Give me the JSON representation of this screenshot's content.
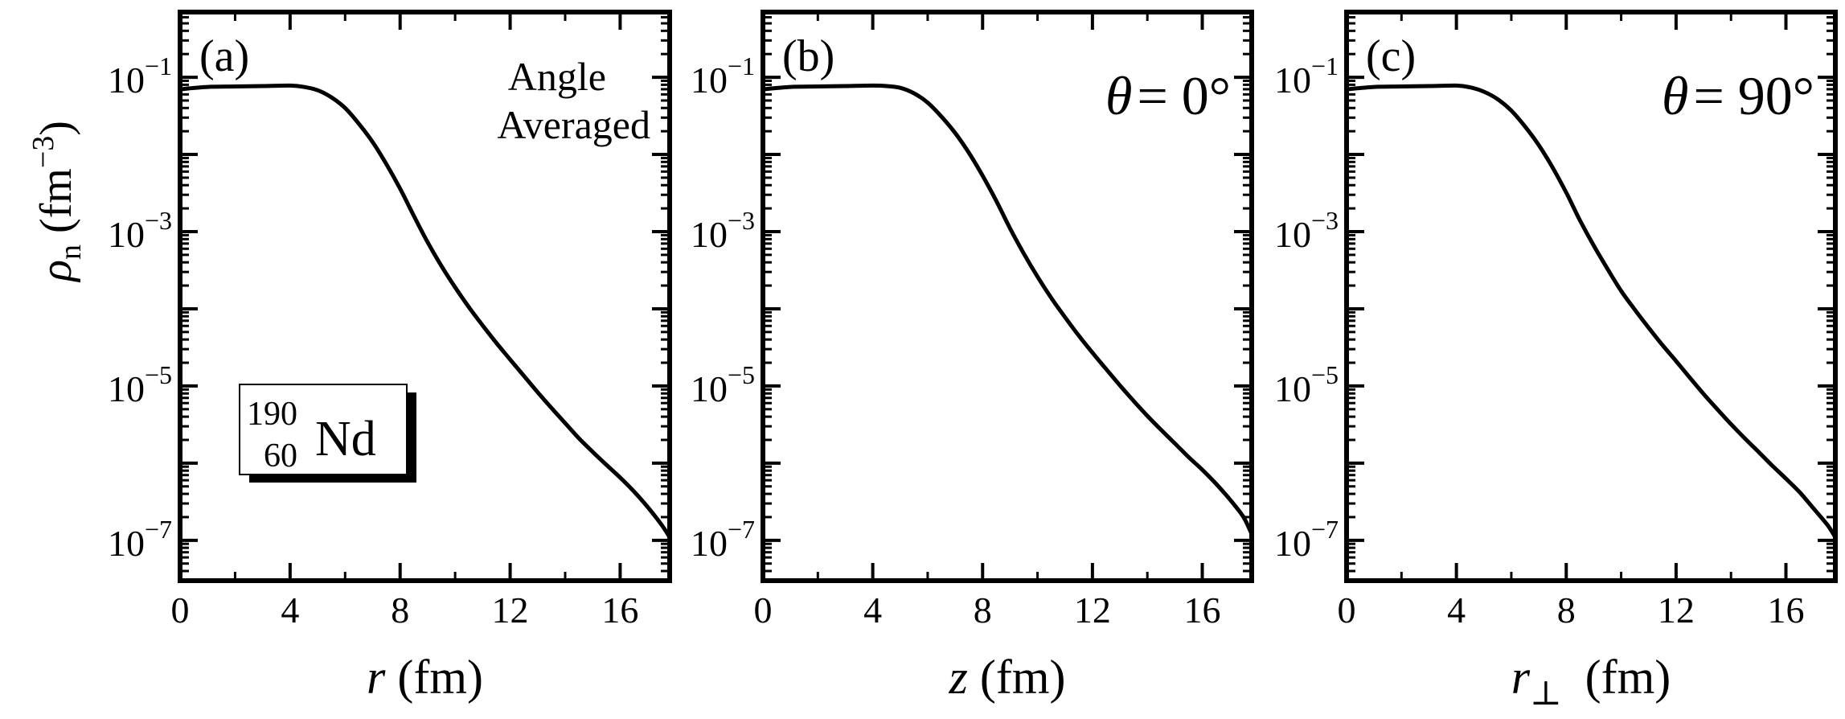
{
  "figure": {
    "ylabel_symbol": "ρ",
    "ylabel_sub": "n",
    "ylabel_unit_open": "(fm",
    "ylabel_unit_sup": "−3",
    "ylabel_unit_close": ")",
    "nucleus": {
      "mass_number": "190",
      "atomic_number": "60",
      "symbol": "Nd"
    }
  },
  "chart_data": [
    {
      "type": "line",
      "panel_label": "(a)",
      "annotation_lines": [
        "Angle",
        "Averaged"
      ],
      "xlabel_var": "r",
      "xlabel_sub": "",
      "xlabel_unit": " (fm)",
      "xlim": [
        0,
        17.8
      ],
      "ylim": [
        3e-08,
        0.7
      ],
      "yscale": "log",
      "xticks": [
        "0",
        "4",
        "8",
        "12",
        "16"
      ],
      "yticks": [
        {
          "base": "10",
          "exp": "−1",
          "value": 0.1
        },
        {
          "base": "10",
          "exp": "−3",
          "value": 0.001
        },
        {
          "base": "10",
          "exp": "−5",
          "value": 1e-05
        },
        {
          "base": "10",
          "exp": "−7",
          "value": 1e-07
        }
      ],
      "series": [
        {
          "x": [
            0,
            1,
            2,
            3,
            4,
            4.5,
            5,
            5.5,
            6,
            6.5,
            7,
            7.5,
            8,
            8.5,
            9,
            9.5,
            10,
            10.5,
            11,
            11.5,
            12,
            12.5,
            13,
            13.5,
            14,
            14.5,
            15,
            15.5,
            16,
            16.5,
            17,
            17.5,
            17.8
          ],
          "y": [
            0.07,
            0.075,
            0.076,
            0.077,
            0.078,
            0.075,
            0.068,
            0.055,
            0.04,
            0.025,
            0.0145,
            0.0075,
            0.0036,
            0.0016,
            0.00073,
            0.00036,
            0.00019,
            0.000105,
            6.1e-05,
            3.6e-05,
            2.2e-05,
            1.35e-05,
            8.3e-06,
            5.2e-06,
            3.3e-06,
            2.1e-06,
            1.4e-06,
            9.5e-07,
            6.5e-07,
            4.3e-07,
            2.7e-07,
            1.6e-07,
            1.1e-07
          ]
        }
      ]
    },
    {
      "type": "line",
      "panel_label": "(b)",
      "annotation_var": "θ",
      "annotation_value": "0°",
      "xlabel_var": "z",
      "xlabel_sub": "",
      "xlabel_unit": " (fm)",
      "xlim": [
        0,
        17.8
      ],
      "ylim": [
        3e-08,
        0.7
      ],
      "yscale": "log",
      "xticks": [
        "0",
        "4",
        "8",
        "12",
        "16"
      ],
      "yticks": [
        {
          "base": "10",
          "exp": "−1",
          "value": 0.1
        },
        {
          "base": "10",
          "exp": "−3",
          "value": 0.001
        },
        {
          "base": "10",
          "exp": "−5",
          "value": 1e-05
        },
        {
          "base": "10",
          "exp": "−7",
          "value": 1e-07
        }
      ],
      "series": [
        {
          "x": [
            0,
            1,
            2,
            3,
            4,
            4.5,
            5,
            5.5,
            6,
            6.5,
            7,
            7.5,
            8,
            8.5,
            9,
            9.5,
            10,
            10.5,
            11,
            11.5,
            12,
            12.5,
            13,
            13.5,
            14,
            14.5,
            15,
            15.5,
            16,
            16.5,
            17,
            17.5,
            17.8
          ],
          "y": [
            0.07,
            0.075,
            0.076,
            0.077,
            0.078,
            0.077,
            0.073,
            0.062,
            0.047,
            0.031,
            0.019,
            0.0105,
            0.0053,
            0.0025,
            0.0011,
            0.00052,
            0.00026,
            0.000138,
            7.8e-05,
            4.5e-05,
            2.7e-05,
            1.65e-05,
            1.02e-05,
            6.4e-06,
            4.1e-06,
            2.7e-06,
            1.8e-06,
            1.2e-06,
            8.2e-07,
            5.4e-07,
            3.4e-07,
            2e-07,
            1.2e-07
          ]
        }
      ]
    },
    {
      "type": "line",
      "panel_label": "(c)",
      "annotation_var": "θ",
      "annotation_value": "90°",
      "xlabel_var": "r",
      "xlabel_sub": "⊥",
      "xlabel_unit": " (fm)",
      "xlim": [
        0,
        17.8
      ],
      "ylim": [
        3e-08,
        0.7
      ],
      "yscale": "log",
      "xticks": [
        "0",
        "4",
        "8",
        "12",
        "16"
      ],
      "yticks": [
        {
          "base": "10",
          "exp": "−1",
          "value": 0.1
        },
        {
          "base": "10",
          "exp": "−3",
          "value": 0.001
        },
        {
          "base": "10",
          "exp": "−5",
          "value": 1e-05
        },
        {
          "base": "10",
          "exp": "−7",
          "value": 1e-07
        }
      ],
      "series": [
        {
          "x": [
            0,
            1,
            2,
            3,
            4,
            4.5,
            5,
            5.5,
            6,
            6.5,
            7,
            7.5,
            8,
            8.5,
            9,
            9.5,
            10,
            10.5,
            11,
            11.5,
            12,
            12.5,
            13,
            13.5,
            14,
            14.5,
            15,
            15.5,
            16,
            16.5,
            17,
            17.5,
            17.8
          ],
          "y": [
            0.07,
            0.075,
            0.076,
            0.077,
            0.078,
            0.074,
            0.065,
            0.052,
            0.037,
            0.023,
            0.0132,
            0.0068,
            0.0032,
            0.0014,
            0.00066,
            0.00033,
            0.00017,
            9.7e-05,
            5.7e-05,
            3.4e-05,
            2.1e-05,
            1.28e-05,
            7.9e-06,
            5e-06,
            3.2e-06,
            2.1e-06,
            1.4e-06,
            9.3e-07,
            6.3e-07,
            4.2e-07,
            2.6e-07,
            1.6e-07,
            1.1e-07
          ]
        }
      ]
    }
  ]
}
